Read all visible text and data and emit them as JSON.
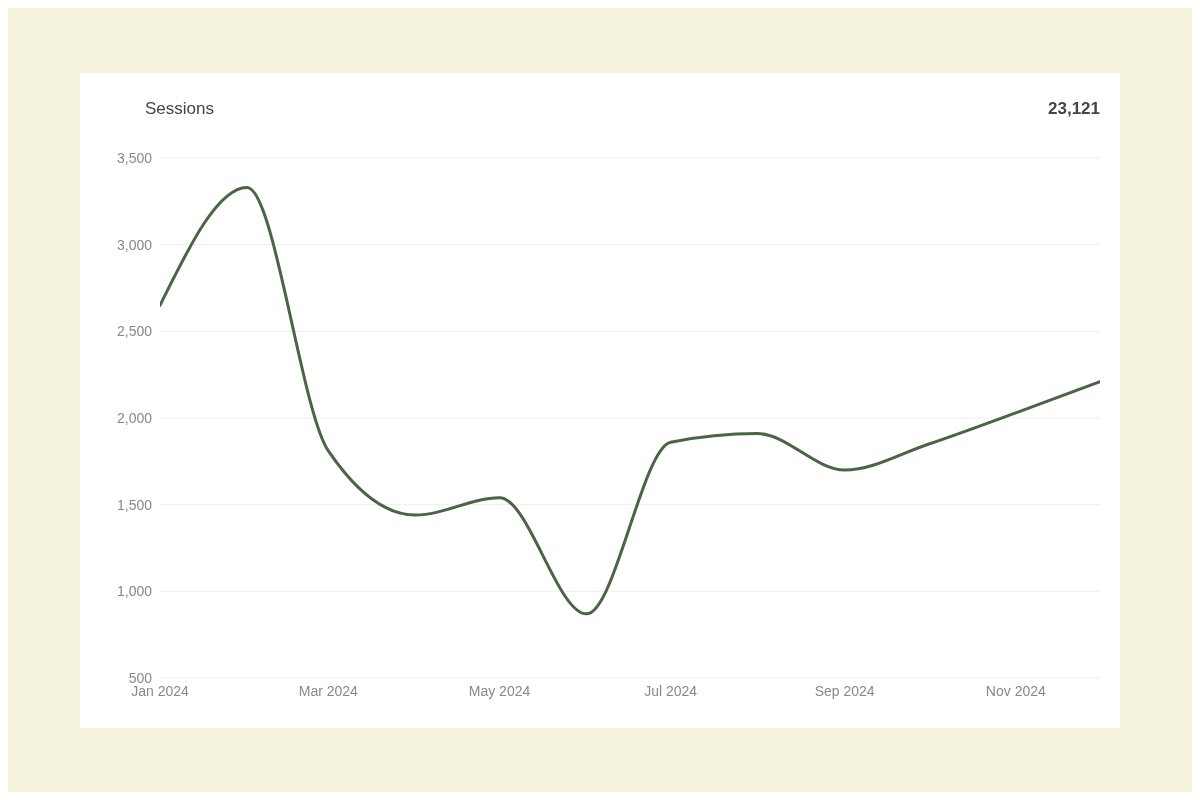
{
  "chart_data": {
    "type": "line",
    "title": "Sessions",
    "annotations": [
      "23,121"
    ],
    "x": [
      "2024-01",
      "2024-02",
      "2024-03",
      "2024-04",
      "2024-05",
      "2024-06",
      "2024-07",
      "2024-08",
      "2024-09",
      "2024-10",
      "2024-11",
      "2024-12"
    ],
    "series": [
      {
        "color": "#4a6445",
        "values": [
          2650,
          3330,
          1810,
          1440,
          1540,
          870,
          1860,
          1910,
          1700,
          1850,
          2030,
          2210
        ]
      }
    ],
    "xlim": [
      "2024-01",
      "2024-12"
    ],
    "xticks": [
      {
        "value": "2024-01",
        "label": "Jan 2024"
      },
      {
        "value": "2024-03",
        "label": "Mar 2024"
      },
      {
        "value": "2024-05",
        "label": "May 2024"
      },
      {
        "value": "2024-07",
        "label": "Jul 2024"
      },
      {
        "value": "2024-09",
        "label": "Sep 2024"
      },
      {
        "value": "2024-11",
        "label": "Nov 2024"
      }
    ],
    "ylim": [
      500,
      3500
    ],
    "yticks": [
      {
        "value": 500,
        "label": "500"
      },
      {
        "value": 1000,
        "label": "1,000"
      },
      {
        "value": 1500,
        "label": "1,500"
      },
      {
        "value": 2000,
        "label": "2,000"
      },
      {
        "value": 2500,
        "label": "2,500"
      },
      {
        "value": 3000,
        "label": "3,000"
      },
      {
        "value": 3500,
        "label": "3,500"
      }
    ],
    "grid": "y",
    "marker": "none",
    "line_style": "solid",
    "legend": false
  }
}
